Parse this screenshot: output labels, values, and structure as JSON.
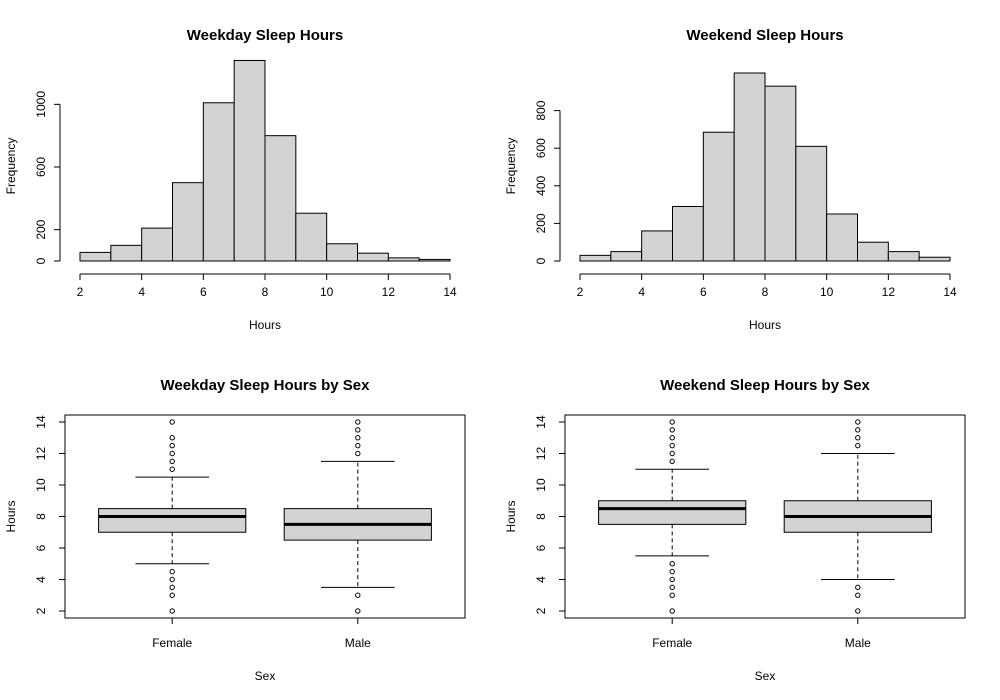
{
  "colors": {
    "fill": "#d3d3d3",
    "stroke": "#000000",
    "background": "#ffffff"
  },
  "chart_data": [
    {
      "type": "bar",
      "subtype": "histogram",
      "title": "Weekday Sleep Hours",
      "xlabel": "Hours",
      "ylabel": "Frequency",
      "xlim": [
        2,
        14
      ],
      "ylim": [
        0,
        1200
      ],
      "x_ticks": [
        2,
        4,
        6,
        8,
        10,
        12,
        14
      ],
      "y_ticks": [
        0,
        200,
        600,
        1000
      ],
      "bin_edges": [
        2,
        3,
        4,
        5,
        6,
        7,
        8,
        9,
        10,
        11,
        12,
        13,
        14
      ],
      "values": [
        55,
        100,
        210,
        500,
        1010,
        1280,
        800,
        305,
        110,
        50,
        20,
        10
      ],
      "grid": false
    },
    {
      "type": "bar",
      "subtype": "histogram",
      "title": "Weekend Sleep Hours",
      "xlabel": "Hours",
      "ylabel": "Frequency",
      "xlim": [
        2,
        14
      ],
      "ylim": [
        0,
        1000
      ],
      "x_ticks": [
        2,
        4,
        6,
        8,
        10,
        12,
        14
      ],
      "y_ticks": [
        0,
        200,
        400,
        600,
        800
      ],
      "bin_edges": [
        2,
        3,
        4,
        5,
        6,
        7,
        8,
        9,
        10,
        11,
        12,
        13,
        14
      ],
      "values": [
        30,
        50,
        160,
        290,
        685,
        1000,
        930,
        610,
        250,
        100,
        50,
        20
      ],
      "grid": false
    },
    {
      "type": "boxplot",
      "title": "Weekday Sleep Hours by Sex",
      "xlabel": "Sex",
      "ylabel": "Hours",
      "ylim": [
        2,
        14
      ],
      "y_ticks": [
        2,
        4,
        6,
        8,
        10,
        12,
        14
      ],
      "categories": [
        "Female",
        "Male"
      ],
      "boxes": [
        {
          "category": "Female",
          "whisker_low": 5,
          "q1": 7,
          "median": 8,
          "q3": 8.5,
          "whisker_high": 10.5,
          "outliers": [
            2,
            3,
            3.5,
            4,
            4.5,
            11,
            11.5,
            12,
            12.5,
            13,
            14
          ]
        },
        {
          "category": "Male",
          "whisker_low": 3.5,
          "q1": 6.5,
          "median": 7.5,
          "q3": 8.5,
          "whisker_high": 11.5,
          "outliers": [
            2,
            3,
            12,
            12.5,
            13,
            13.5,
            14
          ]
        }
      ]
    },
    {
      "type": "boxplot",
      "title": "Weekend Sleep Hours by Sex",
      "xlabel": "Sex",
      "ylabel": "Hours",
      "ylim": [
        2,
        14
      ],
      "y_ticks": [
        2,
        4,
        6,
        8,
        10,
        12,
        14
      ],
      "categories": [
        "Female",
        "Male"
      ],
      "boxes": [
        {
          "category": "Female",
          "whisker_low": 5.5,
          "q1": 7.5,
          "median": 8.5,
          "q3": 9,
          "whisker_high": 11,
          "outliers": [
            2,
            3,
            3.5,
            4,
            4.5,
            5,
            11.5,
            12,
            12.5,
            13,
            13.5,
            14
          ]
        },
        {
          "category": "Male",
          "whisker_low": 4,
          "q1": 7,
          "median": 8,
          "q3": 9,
          "whisker_high": 12,
          "outliers": [
            2,
            3,
            3.5,
            12.5,
            13,
            13.5,
            14
          ]
        }
      ]
    }
  ]
}
